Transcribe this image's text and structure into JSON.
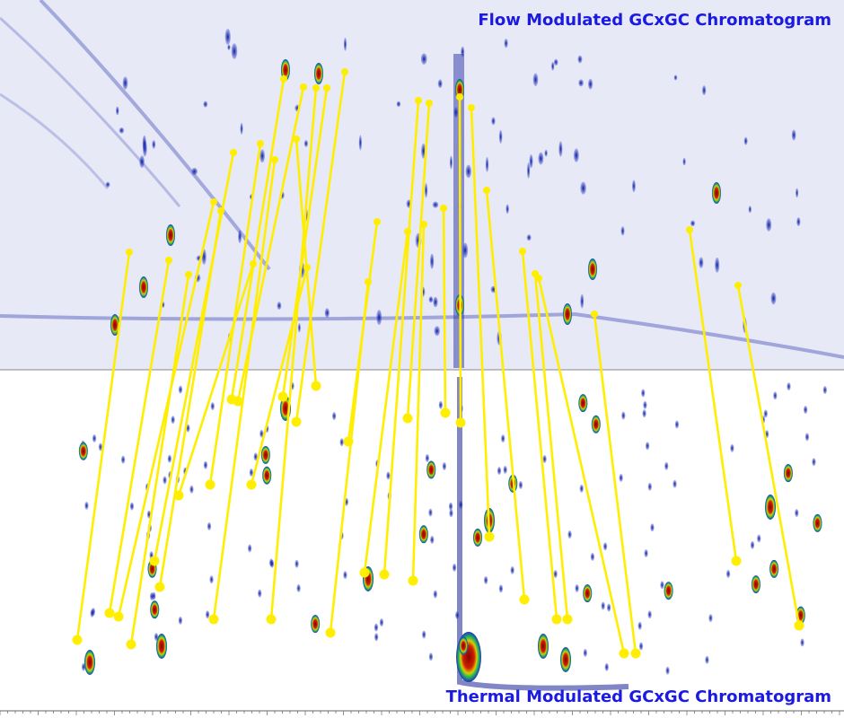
{
  "titles": {
    "top": "Flow Modulated GCxGC Chromatogram",
    "bottom": "Thermal Modulated GCxGC Chromatogram"
  },
  "colors": {
    "title": "#1a1ae0",
    "connector": "#ffee00",
    "top_background": "#e7e9f6",
    "bottom_background": "#ffffff",
    "peak_low": "#2233bb",
    "peak_mid": "#22bb55",
    "peak_high": "#8b0000"
  }
}
